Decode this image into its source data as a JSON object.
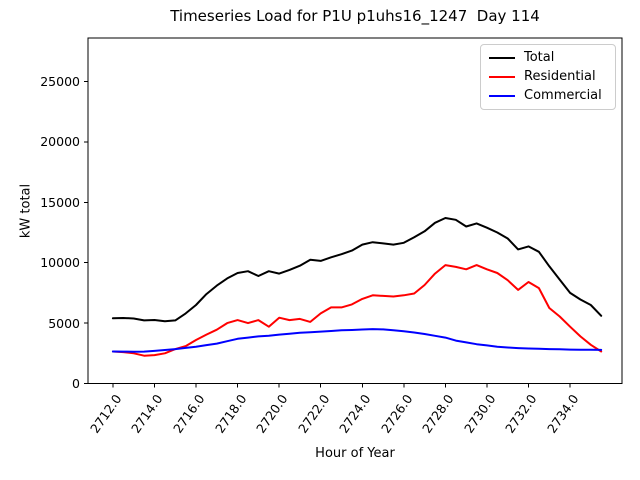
{
  "chart_data": {
    "type": "line",
    "title": "Timeseries Load for P1U p1uhs16_1247  Day 114",
    "xlabel": "Hour of Year",
    "ylabel": "kW total",
    "grid": false,
    "legend_position": "upper right",
    "xlim": [
      2710.8,
      2736.5
    ],
    "ylim": [
      0,
      28600
    ],
    "xticks": {
      "values": [
        2712,
        2714,
        2716,
        2718,
        2720,
        2722,
        2724,
        2726,
        2728,
        2730,
        2732,
        2734
      ],
      "labels": [
        "2712.0",
        "2714.0",
        "2716.0",
        "2718.0",
        "2720.0",
        "2722.0",
        "2724.0",
        "2726.0",
        "2728.0",
        "2730.0",
        "2732.0",
        "2734.0"
      ]
    },
    "yticks": {
      "values": [
        0,
        5000,
        10000,
        15000,
        20000,
        25000
      ],
      "labels": [
        "0",
        "5000",
        "10000",
        "15000",
        "20000",
        "25000"
      ]
    },
    "x": [
      2712.0,
      2712.5,
      2713.0,
      2713.5,
      2714.0,
      2714.5,
      2715.0,
      2715.5,
      2716.0,
      2716.5,
      2717.0,
      2717.5,
      2718.0,
      2718.5,
      2719.0,
      2719.5,
      2720.0,
      2720.5,
      2721.0,
      2721.5,
      2722.0,
      2722.5,
      2723.0,
      2723.5,
      2724.0,
      2724.5,
      2725.0,
      2725.5,
      2726.0,
      2726.5,
      2727.0,
      2727.5,
      2728.0,
      2728.5,
      2729.0,
      2729.5,
      2730.0,
      2730.5,
      2731.0,
      2731.5,
      2732.0,
      2732.5,
      2733.0,
      2733.5,
      2734.0,
      2734.5,
      2735.0,
      2735.5
    ],
    "series": [
      {
        "name": "Total",
        "color": "#000000",
        "values": [
          5400,
          5420,
          5380,
          5220,
          5260,
          5150,
          5220,
          5800,
          6500,
          7400,
          8100,
          8700,
          9150,
          9300,
          8900,
          9300,
          9100,
          9400,
          9750,
          10250,
          10150,
          10450,
          10700,
          11000,
          11500,
          11700,
          11600,
          11500,
          11650,
          12100,
          12600,
          13300,
          13700,
          13550,
          13000,
          13250,
          12900,
          12500,
          12000,
          11100,
          11350,
          10900,
          9700,
          8600,
          7500,
          6950,
          6500,
          5600
        ]
      },
      {
        "name": "Residential",
        "color": "#ff0000",
        "values": [
          2650,
          2600,
          2500,
          2300,
          2350,
          2500,
          2850,
          3100,
          3600,
          4050,
          4450,
          5000,
          5250,
          5000,
          5250,
          4700,
          5450,
          5250,
          5350,
          5100,
          5800,
          6300,
          6300,
          6550,
          7000,
          7300,
          7250,
          7200,
          7300,
          7450,
          8150,
          9100,
          9800,
          9650,
          9450,
          9800,
          9450,
          9150,
          8550,
          7750,
          8400,
          7900,
          6250,
          5550,
          4700,
          3900,
          3200,
          2650
        ]
      },
      {
        "name": "Commercial",
        "color": "#0000ff",
        "values": [
          2650,
          2640,
          2630,
          2640,
          2700,
          2770,
          2850,
          2950,
          3050,
          3180,
          3300,
          3500,
          3700,
          3800,
          3900,
          3950,
          4050,
          4120,
          4200,
          4250,
          4300,
          4350,
          4400,
          4430,
          4470,
          4500,
          4480,
          4400,
          4320,
          4220,
          4100,
          3950,
          3800,
          3550,
          3400,
          3250,
          3150,
          3050,
          2980,
          2930,
          2900,
          2870,
          2850,
          2830,
          2810,
          2800,
          2790,
          2780
        ]
      }
    ]
  }
}
